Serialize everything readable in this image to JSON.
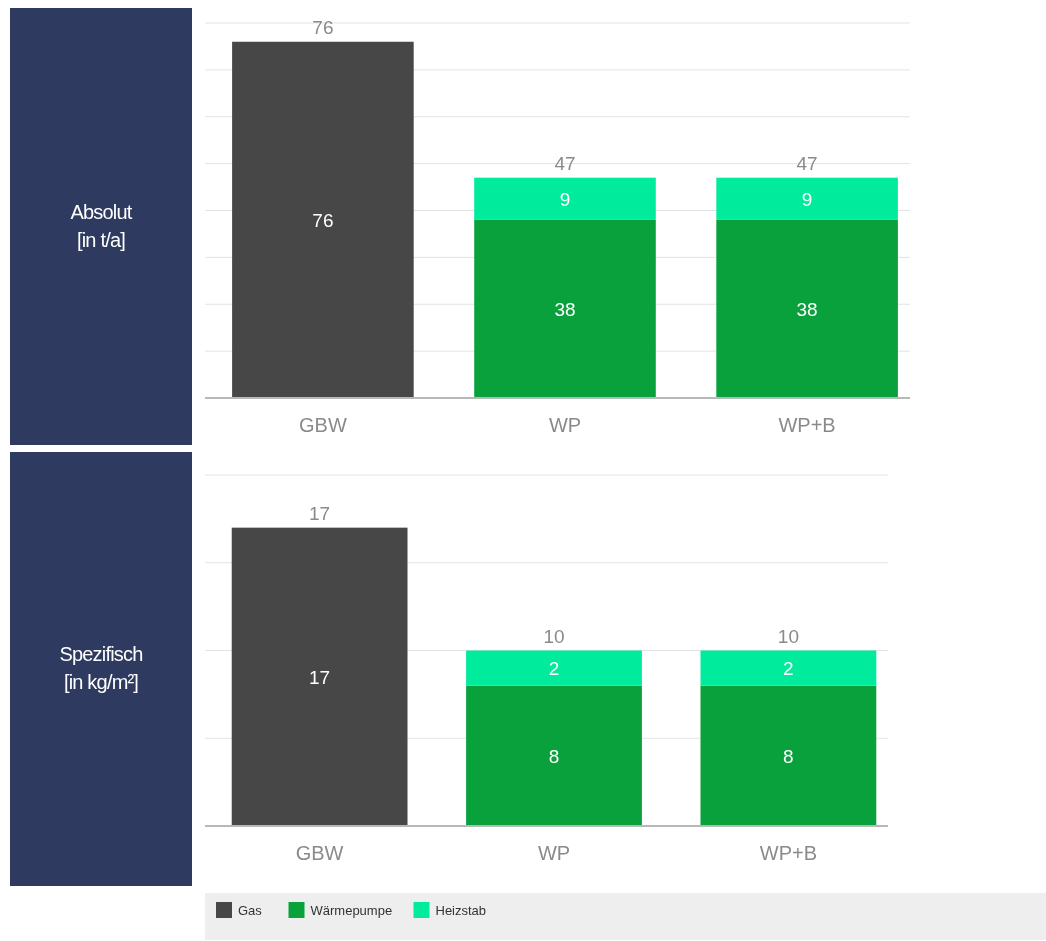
{
  "chart_data": [
    {
      "type": "bar",
      "ylabel": "Absolut\n[in t/a]",
      "categories": [
        "GBW",
        "WP",
        "WP+B"
      ],
      "stacked": true,
      "ylim": [
        0,
        80
      ],
      "yticks": [
        {
          "value": 10,
          "label": null
        },
        {
          "value": 20,
          "label": null
        },
        {
          "value": 30,
          "label": null
        },
        {
          "value": 40,
          "label": null
        },
        {
          "value": 50,
          "label": null
        },
        {
          "value": 60,
          "label": null
        },
        {
          "value": 70,
          "label": null
        },
        {
          "value": 80,
          "label": null
        }
      ],
      "tick_labels": "x",
      "grid": "y",
      "data_labels": true,
      "totals": [
        "76",
        "47",
        "47"
      ],
      "series": [
        {
          "color": "#474747",
          "values": [
            76,
            null,
            null
          ]
        },
        {
          "color": "#08a13b",
          "values": [
            null,
            38,
            38
          ]
        },
        {
          "color": "#00eb9b",
          "values": [
            null,
            9,
            9
          ]
        }
      ]
    },
    {
      "type": "bar",
      "ylabel": "Spezifisch\n[in kg/m²]",
      "categories": [
        "GBW",
        "WP",
        "WP+B"
      ],
      "stacked": true,
      "ylim": [
        0,
        20
      ],
      "yticks": [
        {
          "value": 5,
          "label": null
        },
        {
          "value": 10,
          "label": null
        },
        {
          "value": 15,
          "label": null
        },
        {
          "value": 20,
          "label": null
        }
      ],
      "tick_labels": "x",
      "grid": "y",
      "data_labels": true,
      "totals": [
        "17",
        "10",
        "10"
      ],
      "legend": "bottom",
      "series": [
        {
          "name": "Gas",
          "color": "#474747",
          "values": [
            17,
            null,
            null
          ]
        },
        {
          "name": "Wärmepumpe",
          "color": "#08a13b",
          "values": [
            null,
            8,
            8
          ]
        },
        {
          "name": "Heizstab",
          "color": "#00eb9b",
          "values": [
            null,
            2,
            2
          ]
        }
      ]
    }
  ]
}
